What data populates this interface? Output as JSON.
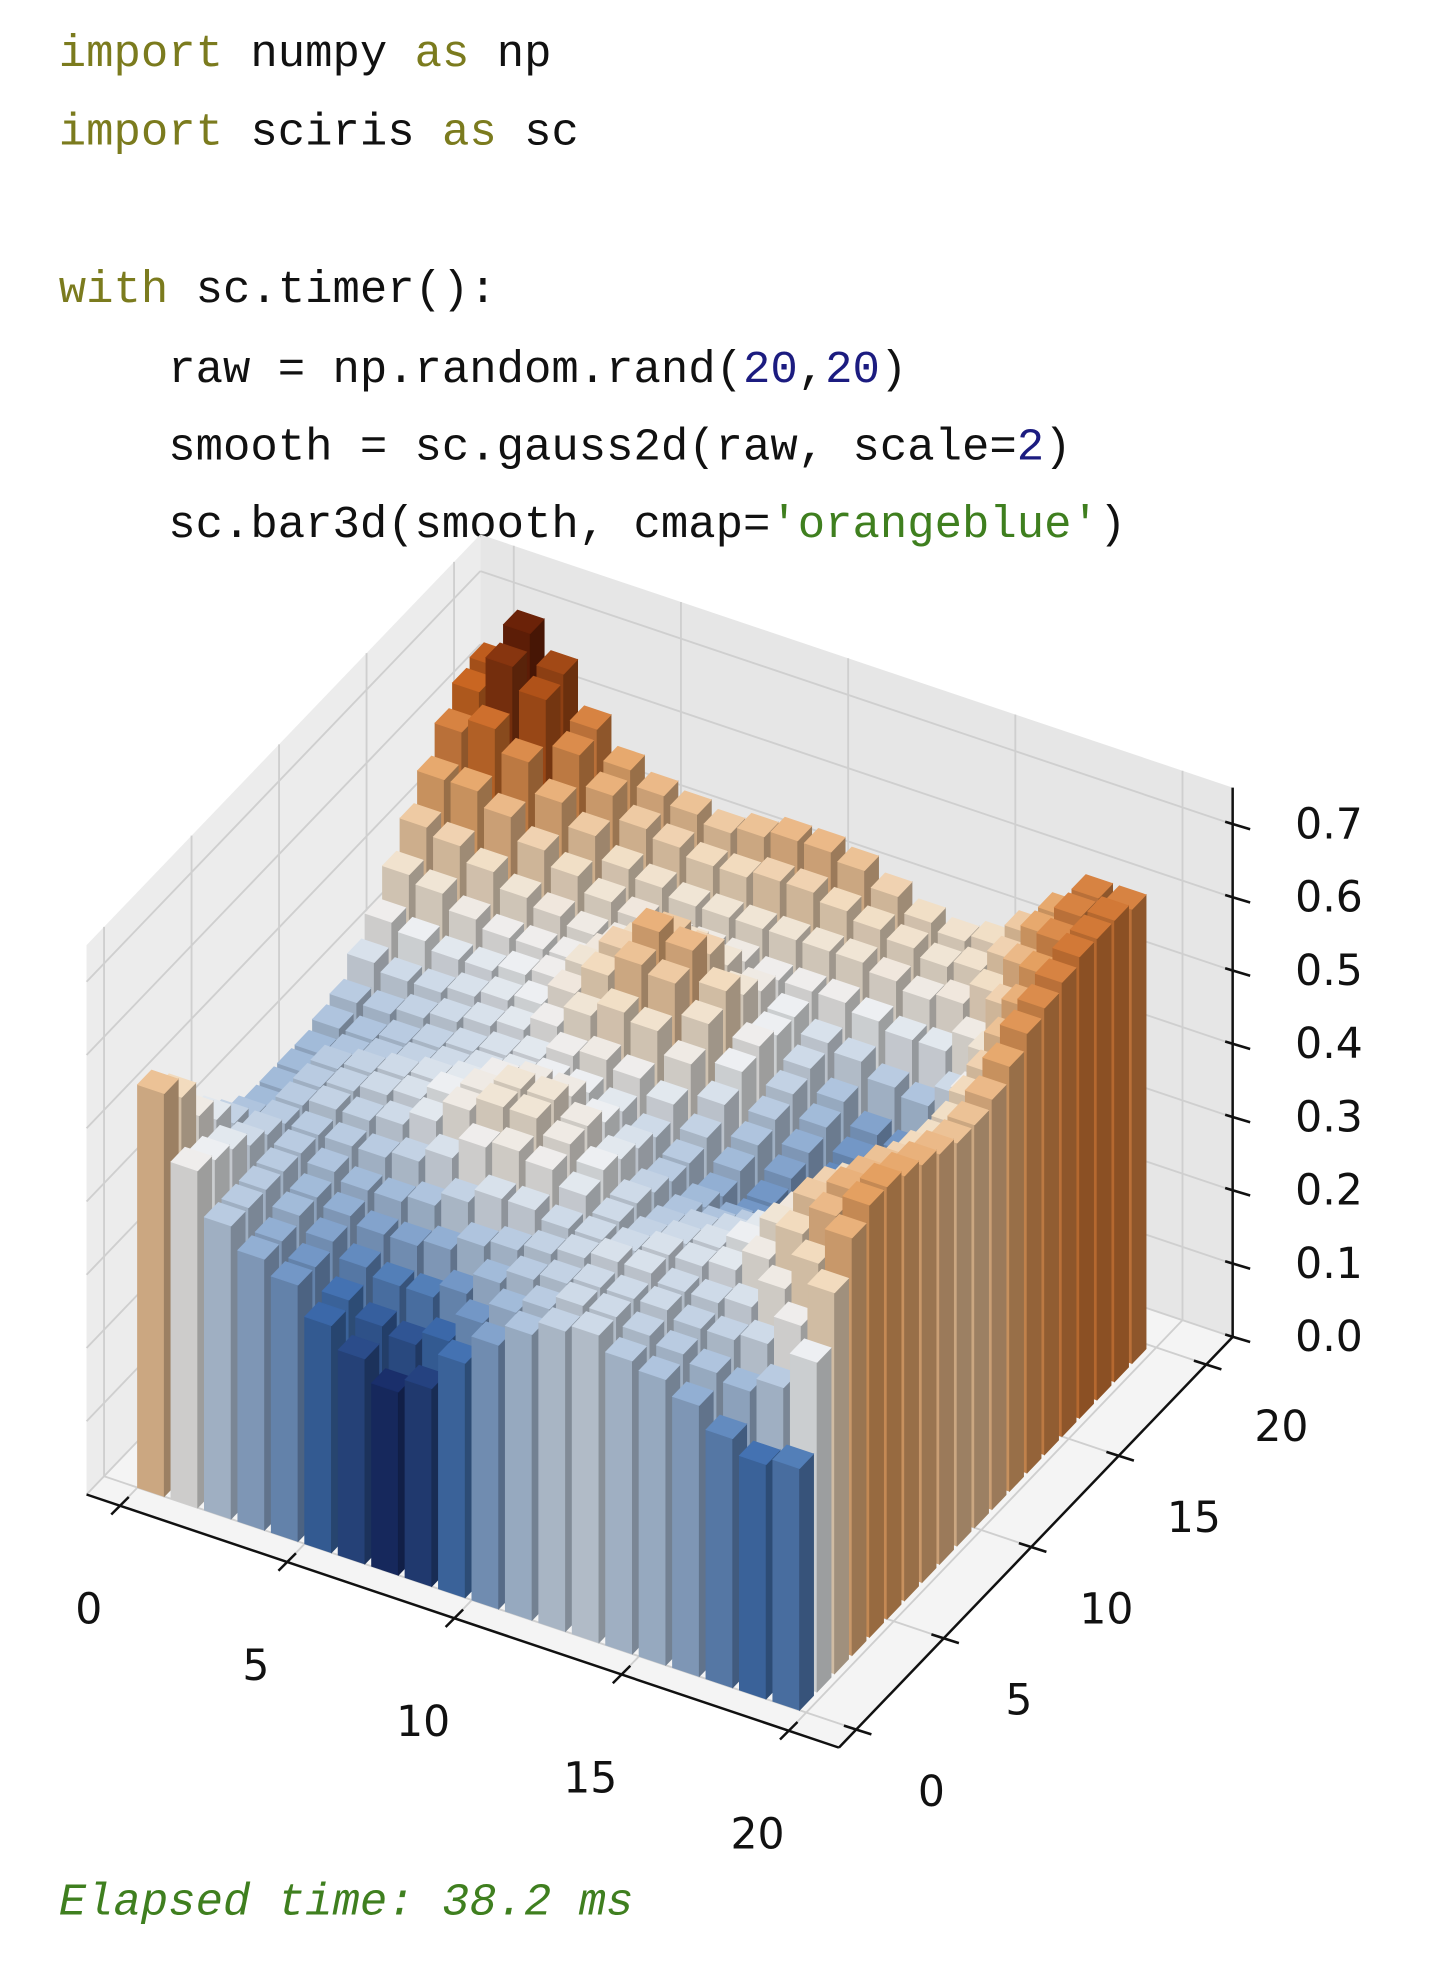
{
  "code": {
    "lines": [
      {
        "tokens": [
          {
            "text": "import",
            "color": "#7b7b1e"
          },
          {
            "text": " numpy "
          },
          {
            "text": "as",
            "color": "#7b7b1e"
          },
          {
            "text": " np"
          }
        ]
      },
      {
        "tokens": [
          {
            "text": "import",
            "color": "#7b7b1e"
          },
          {
            "text": " sciris "
          },
          {
            "text": "as",
            "color": "#7b7b1e"
          },
          {
            "text": " sc"
          }
        ]
      },
      {
        "tokens": []
      },
      {
        "tokens": [
          {
            "text": "with",
            "color": "#7b7b1e"
          },
          {
            "text": " sc.timer():"
          }
        ]
      },
      {
        "tokens": [
          {
            "text": "    raw = np.random.rand("
          },
          {
            "text": "20",
            "color": "#1c1c80"
          },
          {
            "text": ","
          },
          {
            "text": "20",
            "color": "#1c1c80"
          },
          {
            "text": ")"
          }
        ]
      },
      {
        "tokens": [
          {
            "text": "    smooth = sc.gauss2d(raw, scale="
          },
          {
            "text": "2",
            "color": "#1c1c80"
          },
          {
            "text": ")"
          }
        ]
      },
      {
        "tokens": [
          {
            "text": "    sc.bar3d(smooth, cmap="
          },
          {
            "text": "'orangeblue'",
            "color": "#3f7f1f"
          },
          {
            "text": ")"
          }
        ]
      }
    ]
  },
  "output": {
    "text": "Elapsed time: 38.2 ms",
    "color": "#3f7f1f"
  },
  "chart_data": {
    "type": "bar3d",
    "xlim": [
      -1,
      21.5
    ],
    "ylim": [
      -1,
      21.5
    ],
    "zlim": [
      0,
      0.75
    ],
    "xticks": [
      0,
      5,
      10,
      15,
      20
    ],
    "yticks": [
      0,
      5,
      10,
      15,
      20
    ],
    "zticks": [
      {
        "value": 0,
        "label": "0.0"
      },
      0.1,
      0.2,
      0.3,
      0.4,
      0.5,
      0.6,
      0.7
    ],
    "grid": true,
    "colors": [
      "#1a2f6b",
      "#3f6fb0",
      "#a9c0dc",
      "#eef0f2",
      "#f2dcc0",
      "#e6a466",
      "#c8631f",
      "#6b2208"
    ],
    "values": [
      [
        0.55,
        0.46,
        0.4,
        0.37,
        0.35,
        0.31,
        0.28,
        0.25,
        0.27,
        0.32,
        0.36,
        0.39,
        0.41,
        0.42,
        0.4,
        0.39,
        0.37,
        0.34,
        0.32,
        0.33
      ],
      [
        0.52,
        0.45,
        0.4,
        0.37,
        0.35,
        0.32,
        0.3,
        0.29,
        0.31,
        0.35,
        0.38,
        0.4,
        0.42,
        0.42,
        0.41,
        0.4,
        0.39,
        0.38,
        0.4,
        0.45
      ],
      [
        0.47,
        0.44,
        0.4,
        0.38,
        0.36,
        0.34,
        0.33,
        0.33,
        0.35,
        0.38,
        0.4,
        0.41,
        0.42,
        0.42,
        0.42,
        0.41,
        0.41,
        0.42,
        0.46,
        0.52
      ],
      [
        0.44,
        0.42,
        0.4,
        0.38,
        0.37,
        0.36,
        0.36,
        0.37,
        0.39,
        0.4,
        0.41,
        0.42,
        0.43,
        0.43,
        0.42,
        0.42,
        0.43,
        0.47,
        0.52,
        0.57
      ],
      [
        0.41,
        0.41,
        0.4,
        0.39,
        0.38,
        0.38,
        0.39,
        0.41,
        0.43,
        0.43,
        0.42,
        0.42,
        0.42,
        0.43,
        0.43,
        0.44,
        0.47,
        0.52,
        0.56,
        0.59
      ],
      [
        0.39,
        0.4,
        0.4,
        0.4,
        0.4,
        0.41,
        0.43,
        0.46,
        0.47,
        0.46,
        0.44,
        0.42,
        0.41,
        0.42,
        0.43,
        0.45,
        0.49,
        0.54,
        0.57,
        0.59
      ],
      [
        0.38,
        0.4,
        0.41,
        0.41,
        0.42,
        0.44,
        0.47,
        0.49,
        0.49,
        0.47,
        0.45,
        0.42,
        0.4,
        0.41,
        0.42,
        0.44,
        0.48,
        0.53,
        0.56,
        0.58
      ],
      [
        0.38,
        0.4,
        0.41,
        0.42,
        0.43,
        0.45,
        0.47,
        0.49,
        0.49,
        0.47,
        0.44,
        0.41,
        0.39,
        0.39,
        0.4,
        0.42,
        0.46,
        0.51,
        0.55,
        0.57
      ],
      [
        0.38,
        0.4,
        0.41,
        0.42,
        0.43,
        0.44,
        0.46,
        0.47,
        0.47,
        0.45,
        0.43,
        0.4,
        0.38,
        0.37,
        0.37,
        0.39,
        0.43,
        0.48,
        0.53,
        0.56
      ],
      [
        0.38,
        0.39,
        0.4,
        0.41,
        0.42,
        0.43,
        0.44,
        0.45,
        0.45,
        0.44,
        0.42,
        0.4,
        0.37,
        0.35,
        0.35,
        0.37,
        0.41,
        0.46,
        0.52,
        0.55
      ],
      [
        0.39,
        0.39,
        0.4,
        0.41,
        0.42,
        0.43,
        0.44,
        0.46,
        0.47,
        0.46,
        0.44,
        0.41,
        0.38,
        0.35,
        0.34,
        0.35,
        0.39,
        0.45,
        0.51,
        0.55
      ],
      [
        0.4,
        0.4,
        0.41,
        0.42,
        0.43,
        0.44,
        0.46,
        0.49,
        0.51,
        0.5,
        0.47,
        0.43,
        0.39,
        0.36,
        0.34,
        0.34,
        0.38,
        0.44,
        0.51,
        0.56
      ],
      [
        0.43,
        0.42,
        0.42,
        0.43,
        0.44,
        0.45,
        0.48,
        0.52,
        0.55,
        0.54,
        0.5,
        0.45,
        0.4,
        0.37,
        0.34,
        0.33,
        0.37,
        0.44,
        0.52,
        0.58
      ],
      [
        0.46,
        0.45,
        0.44,
        0.44,
        0.45,
        0.46,
        0.49,
        0.53,
        0.57,
        0.56,
        0.52,
        0.46,
        0.41,
        0.38,
        0.35,
        0.33,
        0.36,
        0.44,
        0.53,
        0.6
      ],
      [
        0.5,
        0.49,
        0.47,
        0.46,
        0.46,
        0.46,
        0.48,
        0.51,
        0.54,
        0.53,
        0.49,
        0.45,
        0.42,
        0.39,
        0.36,
        0.35,
        0.38,
        0.46,
        0.55,
        0.61
      ],
      [
        0.54,
        0.53,
        0.51,
        0.49,
        0.48,
        0.47,
        0.47,
        0.48,
        0.5,
        0.49,
        0.47,
        0.45,
        0.43,
        0.42,
        0.4,
        0.39,
        0.42,
        0.49,
        0.57,
        0.62
      ],
      [
        0.58,
        0.58,
        0.56,
        0.53,
        0.51,
        0.49,
        0.48,
        0.47,
        0.47,
        0.47,
        0.46,
        0.46,
        0.46,
        0.45,
        0.44,
        0.44,
        0.47,
        0.53,
        0.59,
        0.63
      ],
      [
        0.62,
        0.64,
        0.61,
        0.57,
        0.54,
        0.51,
        0.5,
        0.49,
        0.49,
        0.49,
        0.49,
        0.49,
        0.49,
        0.48,
        0.47,
        0.48,
        0.51,
        0.56,
        0.61,
        0.63
      ],
      [
        0.65,
        0.7,
        0.67,
        0.61,
        0.57,
        0.54,
        0.53,
        0.52,
        0.52,
        0.53,
        0.53,
        0.52,
        0.51,
        0.5,
        0.49,
        0.5,
        0.53,
        0.58,
        0.62,
        0.63
      ],
      [
        0.66,
        0.72,
        0.68,
        0.62,
        0.58,
        0.56,
        0.55,
        0.54,
        0.55,
        0.56,
        0.56,
        0.55,
        0.53,
        0.51,
        0.5,
        0.51,
        0.54,
        0.58,
        0.62,
        0.62
      ]
    ]
  }
}
